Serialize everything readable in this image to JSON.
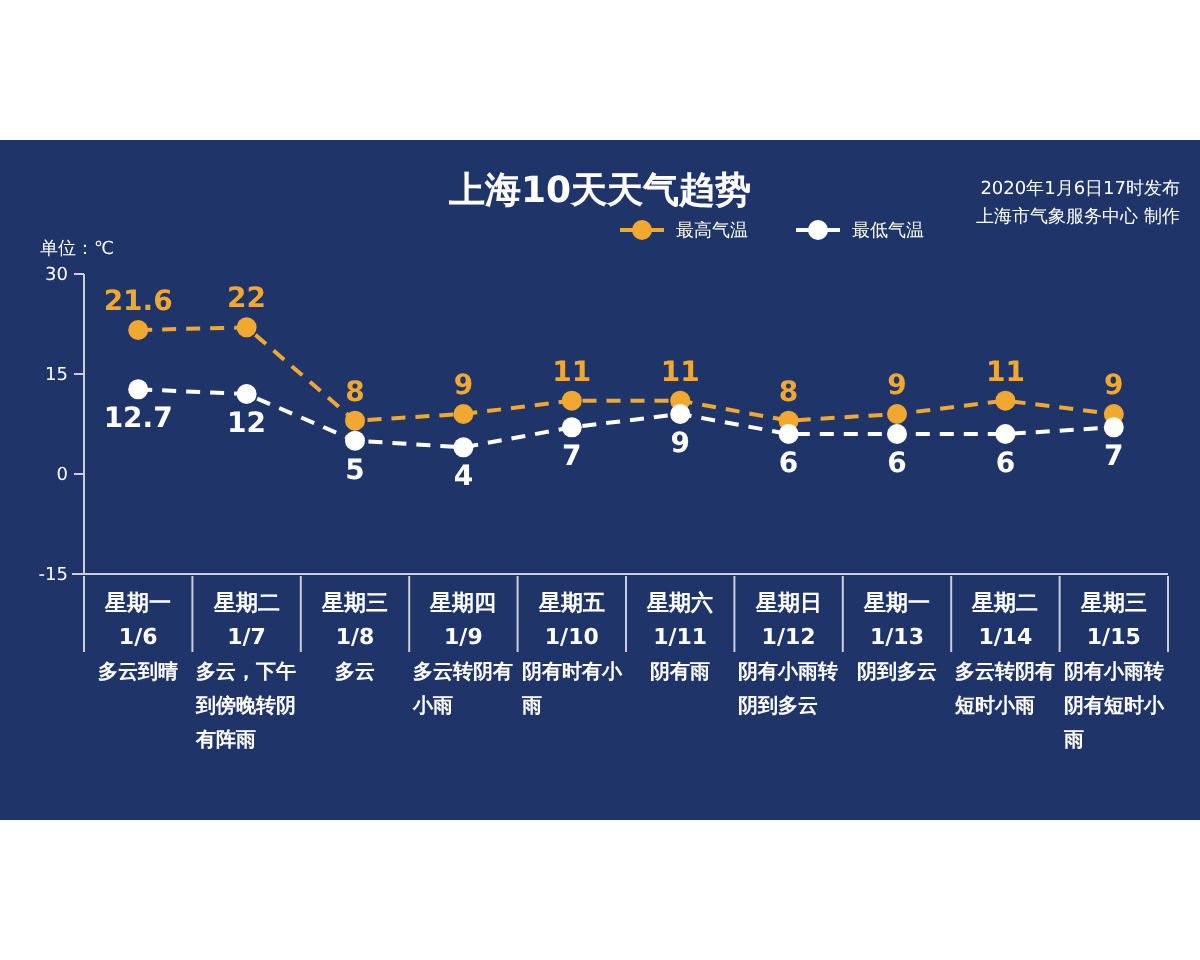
{
  "chart_data": {
    "type": "line",
    "title": "上海10天天气趋势",
    "ylabel": "单位：℃",
    "categories": [
      "星期一\n1/6",
      "星期二\n1/7",
      "星期三\n1/8",
      "星期四\n1/9",
      "星期五\n1/10",
      "星期六\n1/11",
      "星期日\n1/12",
      "星期一\n1/13",
      "星期二\n1/14",
      "星期三\n1/15"
    ],
    "series": [
      {
        "name": "最高气温",
        "color": "#f0a830",
        "values": [
          21.6,
          22,
          8,
          9,
          11,
          11,
          8,
          9,
          11,
          9
        ]
      },
      {
        "name": "最低气温",
        "color": "#ffffff",
        "values": [
          12.7,
          12,
          5,
          4,
          7,
          9,
          6,
          6,
          6,
          7
        ]
      }
    ],
    "ylim": [
      -15,
      30
    ],
    "yticks": [
      -15,
      0,
      15,
      30
    ],
    "data_labels": true,
    "legend": "top",
    "marker": "circle",
    "line_style": "dashed",
    "grid": false,
    "annotations": [
      "2020年1月6日17时发布",
      "上海市气象服务中心 制作",
      "多云到晴",
      "多云，下午到傍晚转阴有阵雨",
      "多云",
      "多云转阴有小雨",
      "阴有时有小雨",
      "阴有雨",
      "阴有小雨转阴到多云",
      "阴到多云",
      "多云转阴有短时小雨",
      "阴有小雨转阴有短时小雨"
    ]
  }
}
